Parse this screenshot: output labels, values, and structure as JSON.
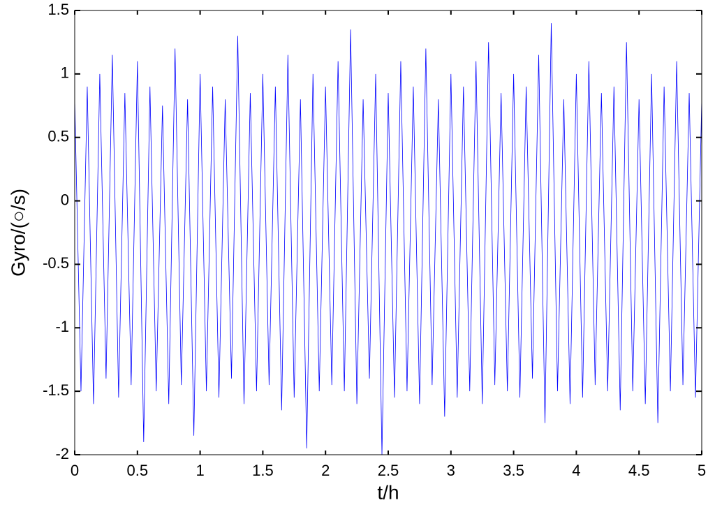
{
  "chart_data": {
    "type": "line",
    "xlabel": "t/h",
    "ylabel": "Gyro/(○/s)",
    "xlim": [
      0,
      5
    ],
    "ylim": [
      -2,
      1.5
    ],
    "xticks": [
      0,
      0.5,
      1,
      1.5,
      2,
      2.5,
      3,
      3.5,
      4,
      4.5,
      5
    ],
    "yticks": [
      -2,
      -1.5,
      -1,
      -0.5,
      0,
      0.5,
      1,
      1.5
    ],
    "grid": false,
    "x": [
      0,
      0.05,
      0.1,
      0.15,
      0.2,
      0.25,
      0.3,
      0.35,
      0.4,
      0.45,
      0.5,
      0.55,
      0.6,
      0.65,
      0.7,
      0.75,
      0.8,
      0.85,
      0.9,
      0.95,
      1,
      1.05,
      1.1,
      1.15,
      1.2,
      1.25,
      1.3,
      1.35,
      1.4,
      1.45,
      1.5,
      1.55,
      1.6,
      1.65,
      1.7,
      1.75,
      1.8,
      1.85,
      1.9,
      1.95,
      2,
      2.05,
      2.1,
      2.15,
      2.2,
      2.25,
      2.3,
      2.35,
      2.4,
      2.45,
      2.5,
      2.55,
      2.6,
      2.65,
      2.7,
      2.75,
      2.8,
      2.85,
      2.9,
      2.95,
      3,
      3.05,
      3.1,
      3.15,
      3.2,
      3.25,
      3.3,
      3.35,
      3.4,
      3.45,
      3.5,
      3.55,
      3.6,
      3.65,
      3.7,
      3.75,
      3.8,
      3.85,
      3.9,
      3.95,
      4,
      4.05,
      4.1,
      4.15,
      4.2,
      4.25,
      4.3,
      4.35,
      4.4,
      4.45,
      4.5,
      4.55,
      4.6,
      4.65,
      4.7,
      4.75,
      4.8,
      4.85,
      4.9,
      4.95,
      5
    ],
    "series": [
      {
        "color": "#0000ff",
        "values": [
          0.8,
          -1.5,
          0.9,
          -1.6,
          1.0,
          -1.4,
          1.15,
          -1.55,
          0.85,
          -1.45,
          1.1,
          -1.9,
          0.9,
          -1.5,
          0.75,
          -1.6,
          1.2,
          -1.45,
          0.8,
          -1.85,
          1.0,
          -1.5,
          0.9,
          -1.55,
          0.8,
          -1.4,
          1.3,
          -1.6,
          0.85,
          -1.5,
          1.0,
          -1.45,
          0.9,
          -1.65,
          1.15,
          -1.55,
          0.8,
          -1.95,
          1.0,
          -1.5,
          0.9,
          -1.45,
          1.1,
          -1.5,
          1.35,
          -1.6,
          0.8,
          -1.4,
          1.0,
          -2.0,
          0.85,
          -1.55,
          1.1,
          -1.5,
          0.9,
          -1.6,
          1.2,
          -1.45,
          0.8,
          -1.7,
          1.0,
          -1.55,
          0.9,
          -1.5,
          1.1,
          -1.6,
          1.25,
          -1.45,
          0.85,
          -1.5,
          1.0,
          -1.55,
          0.9,
          -1.4,
          1.15,
          -1.75,
          1.4,
          -1.5,
          0.8,
          -1.6,
          1.0,
          -1.55,
          1.1,
          -1.45,
          0.85,
          -1.5,
          0.9,
          -1.65,
          1.25,
          -1.5,
          0.8,
          -1.6,
          1.0,
          -1.75,
          0.9,
          -1.5,
          1.1,
          -1.45,
          0.85,
          -1.55,
          0.8
        ]
      }
    ]
  }
}
